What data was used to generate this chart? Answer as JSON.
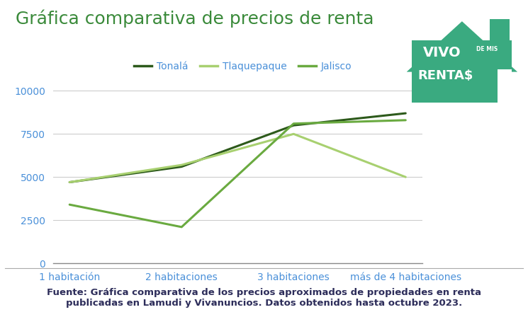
{
  "title": "Gráfica comparativa de precios de renta",
  "title_color": "#3a8a3a",
  "title_fontsize": 18,
  "categories": [
    "1 habitación",
    "2 habitaciones",
    "3 habitaciones",
    "más de 4 habitaciones"
  ],
  "series": [
    {
      "name": "Tonalá",
      "values": [
        4700,
        5600,
        8000,
        8700
      ],
      "color": "#2d5a1b",
      "linewidth": 2.2
    },
    {
      "name": "Tlaquepaque",
      "values": [
        4700,
        5700,
        7500,
        5000
      ],
      "color": "#a8d070",
      "linewidth": 2.2
    },
    {
      "name": "Jalisco",
      "values": [
        3400,
        2100,
        8100,
        8300
      ],
      "color": "#6aaa40",
      "linewidth": 2.2
    }
  ],
  "legend_label_color": "#4a90d9",
  "ylim": [
    0,
    10500
  ],
  "yticks": [
    0,
    2500,
    5000,
    7500,
    10000
  ],
  "grid_color": "#cccccc",
  "bg_color": "#ffffff",
  "footer_text": "Fuente: Gráfica comparativa de los precios aproximados de propiedades en renta\npublicadas en Lamudi y Vivanuncios. Datos obtenidos hasta octubre 2023.",
  "footer_color": "#2d2d5a",
  "footer_fontsize": 9.5,
  "legend_fontsize": 10,
  "tick_label_color": "#4a90d9",
  "tick_label_fontsize": 10,
  "logo_color": "#3aaa80",
  "logo_text1": "VIVO",
  "logo_text2": "DE MIS",
  "logo_text3": "RENTA$"
}
